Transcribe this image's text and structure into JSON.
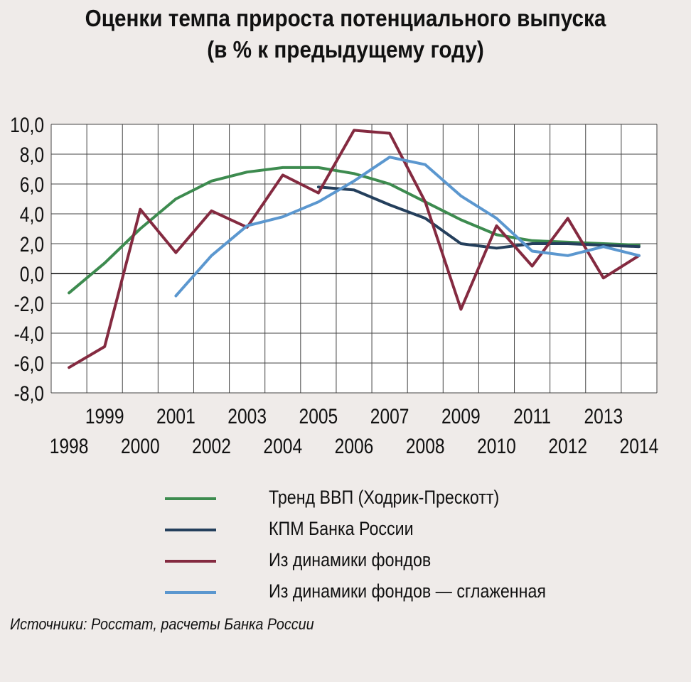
{
  "title": {
    "line1": "Оценки темпа прироста потенциального выпуска",
    "line2": "(в % к предыдущему году)"
  },
  "source": "Источники: Росстат, расчеты Банка России",
  "chart_data": {
    "type": "line",
    "x": [
      1998,
      1999,
      2000,
      2001,
      2002,
      2003,
      2004,
      2005,
      2006,
      2007,
      2008,
      2009,
      2010,
      2011,
      2012,
      2013,
      2014
    ],
    "x_tick_labels": [
      "1998",
      "1999",
      "2000",
      "2001",
      "2002",
      "2003",
      "2004",
      "2005",
      "2006",
      "2007",
      "2008",
      "2009",
      "2010",
      "2011",
      "2012",
      "2013",
      "2014"
    ],
    "y_tick_labels": [
      "10,0",
      "8,0",
      "6,0",
      "4,0",
      "2,0",
      "0,0",
      "-2,0",
      "-4,0",
      "-6,0",
      "-8,0"
    ],
    "ylim": [
      -8,
      10
    ],
    "grid": true,
    "legend_position": "bottom",
    "series": [
      {
        "name": "Тренд ВВП (Ходрик-Прескотт)",
        "color": "#3d8b4f",
        "x": [
          1998,
          1999,
          2000,
          2001,
          2002,
          2003,
          2004,
          2005,
          2006,
          2007,
          2008,
          2009,
          2010,
          2011,
          2012,
          2013,
          2014
        ],
        "values": [
          -1.3,
          0.7,
          3.0,
          5.0,
          6.2,
          6.8,
          7.1,
          7.1,
          6.7,
          6.0,
          4.8,
          3.6,
          2.6,
          2.2,
          2.1,
          2.0,
          1.9
        ]
      },
      {
        "name": "КПМ Банка России",
        "color": "#243f5c",
        "x": [
          2005,
          2006,
          2007,
          2008,
          2009,
          2010,
          2011,
          2012,
          2013,
          2014
        ],
        "values": [
          5.8,
          5.6,
          4.6,
          3.7,
          2.0,
          1.7,
          2.0,
          2.0,
          1.9,
          1.8
        ]
      },
      {
        "name": "Из динамики фондов",
        "color": "#842a40",
        "x": [
          1998,
          1999,
          2000,
          2001,
          2002,
          2003,
          2004,
          2005,
          2006,
          2007,
          2008,
          2009,
          2010,
          2011,
          2012,
          2013,
          2014
        ],
        "values": [
          -6.3,
          -4.9,
          4.3,
          1.4,
          4.2,
          3.1,
          6.6,
          5.4,
          9.6,
          9.4,
          4.8,
          -2.4,
          3.2,
          0.5,
          3.7,
          -0.3,
          1.2
        ]
      },
      {
        "name": "Из динамики фондов — сглаженная",
        "color": "#5b97cf",
        "x": [
          2001,
          2002,
          2003,
          2004,
          2005,
          2006,
          2007,
          2008,
          2009,
          2010,
          2011,
          2012,
          2013,
          2014
        ],
        "values": [
          -1.5,
          1.2,
          3.2,
          3.8,
          4.8,
          6.2,
          7.8,
          7.3,
          5.2,
          3.7,
          1.5,
          1.2,
          1.8,
          1.2
        ]
      }
    ]
  }
}
